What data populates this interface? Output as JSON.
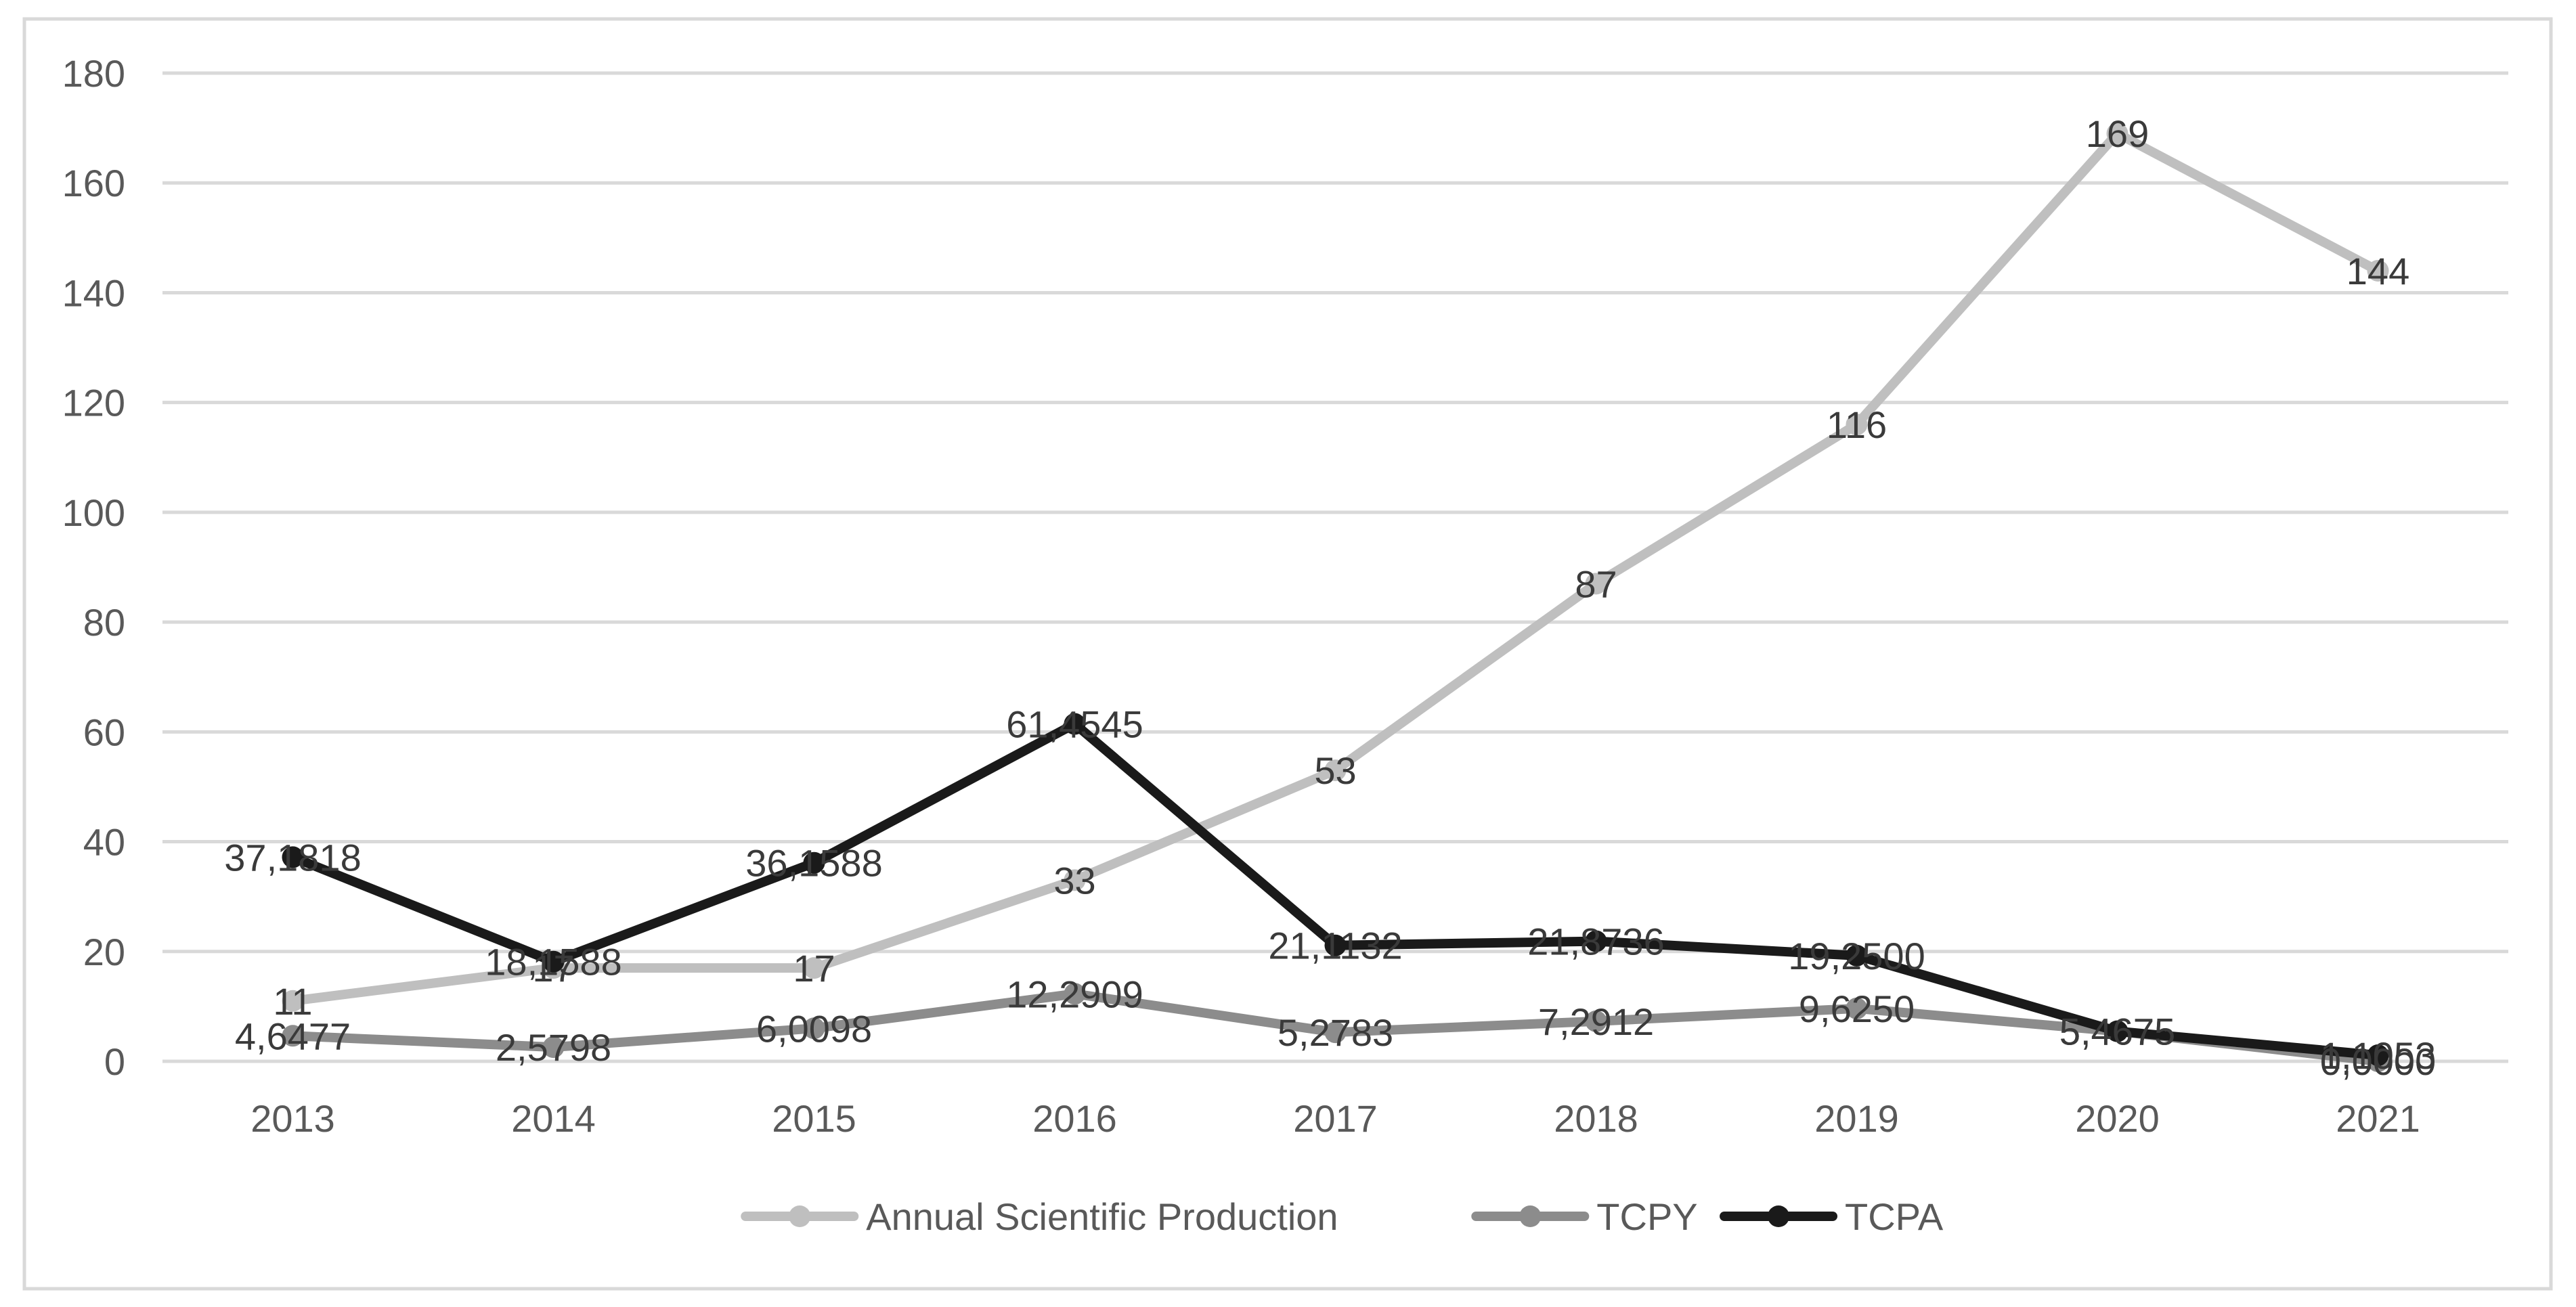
{
  "chart_data": {
    "type": "line",
    "title": "",
    "xlabel": "",
    "ylabel": "",
    "ylim": [
      0,
      180
    ],
    "ytick_step": 20,
    "grid": true,
    "legend_position": "bottom",
    "categories": [
      "2013",
      "2014",
      "2015",
      "2016",
      "2017",
      "2018",
      "2019",
      "2020",
      "2021"
    ],
    "series": [
      {
        "name": "Annual Scientific Production",
        "color": "#bfbfbf",
        "values": [
          11,
          17,
          17,
          33,
          53,
          87,
          116,
          169,
          144
        ],
        "labels": [
          "11",
          "17",
          "17",
          "33",
          "53",
          "87",
          "116",
          "169",
          "144"
        ]
      },
      {
        "name": "TCPY",
        "color": "#8c8c8c",
        "values": [
          4.6477,
          2.5798,
          6.0098,
          12.2909,
          5.2783,
          7.2912,
          9.625,
          5.4675,
          0
        ],
        "labels": [
          "4,6477",
          "2,5798",
          "6,0098",
          "12,2909",
          "5,2783",
          "7,2912",
          "9,6250",
          "5,4675",
          "0,0000"
        ]
      },
      {
        "name": "TCPA",
        "color": "#1a1a1a",
        "values": [
          37.1818,
          18.1588,
          36.1588,
          61.4545,
          21.1132,
          21.8736,
          19.25,
          5.4675,
          1.1053
        ],
        "labels": [
          "37,1818",
          "18,1588",
          "36,1588",
          "61,4545",
          "21,1132",
          "21,8736",
          "19,2500",
          "5,4675",
          "1,1053"
        ]
      }
    ]
  }
}
